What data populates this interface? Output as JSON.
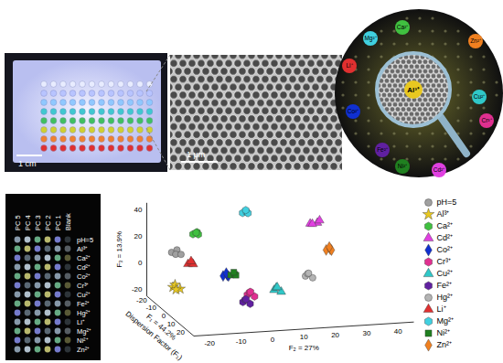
{
  "panels": {
    "plate_photo": {
      "scale_bar": "1 cm"
    },
    "sem_image": {
      "scale_bar": "1 μm"
    },
    "magnifier": {
      "center_label": "Al³⁺",
      "labels": [
        "Mg²⁺",
        "Ca²⁺",
        "Zn²⁺",
        "Li⁺",
        "Co²⁺",
        "Cu²⁺",
        "Cr³⁺",
        "Fe²⁺",
        "Ni²⁺",
        "Cd²⁺"
      ]
    },
    "array_photo": {
      "columns": [
        "PC 5",
        "PC 4",
        "PC 3",
        "PC 2",
        "PC 1",
        "Blank"
      ],
      "rows": [
        "pH=5",
        "Al³⁺",
        "Ca²⁺",
        "Cd²⁺",
        "Co²⁺",
        "Cr³⁺",
        "Cu²⁺",
        "Fe²⁺",
        "Hg²⁺",
        "Li⁺",
        "Mg²⁺",
        "Ni²⁺",
        "Zn²⁺"
      ]
    }
  },
  "chart_data": {
    "type": "scatter",
    "xlabel": "F₂ = 27%",
    "ylabel": "F₁ = 44.2%",
    "zlabel": "F₃ = 13.9%",
    "annotations": [
      "Dispersion Factor (F₁)"
    ],
    "xlim": [
      -25,
      45
    ],
    "xticks": [
      -20,
      -10,
      0,
      10,
      20,
      30,
      40
    ],
    "ylim": [
      -25,
      25
    ],
    "yticks": [
      -20,
      -10,
      0,
      10,
      20
    ],
    "zlim": [
      -25,
      45
    ],
    "zticks": [
      -20,
      0,
      20,
      40
    ],
    "legend": "right",
    "series": [
      {
        "name": "pH=5",
        "color": "#a0a0a0",
        "marker": "circle",
        "x": [
          -21,
          -19,
          -20,
          -18
        ],
        "y": [
          -12,
          -13,
          -11,
          -12
        ],
        "z": [
          15,
          16,
          14,
          13
        ]
      },
      {
        "name": "Al³⁺",
        "color": "#e8c820",
        "marker": "star",
        "x": [
          -23,
          -22,
          -21,
          -22
        ],
        "y": [
          -4,
          -5,
          -3,
          -4
        ],
        "z": [
          -6,
          -5,
          -7,
          -8
        ]
      },
      {
        "name": "Ca²⁺",
        "color": "#40c040",
        "marker": "hexagon",
        "x": [
          -13,
          -12,
          -11,
          -12
        ],
        "y": [
          -16,
          -15,
          -17,
          -16
        ],
        "z": [
          25,
          27,
          24,
          26
        ]
      },
      {
        "name": "Cd²⁺",
        "color": "#e040e0",
        "marker": "triangle",
        "x": [
          24,
          26,
          25,
          27
        ],
        "y": [
          -15,
          -14,
          -16,
          -15
        ],
        "z": [
          28,
          29,
          27,
          30
        ]
      },
      {
        "name": "Co²⁺",
        "color": "#1030d0",
        "marker": "diamond",
        "x": [
          -7,
          -6,
          -5,
          -6
        ],
        "y": [
          -4,
          -3,
          -5,
          -4
        ],
        "z": [
          0,
          1,
          -1,
          2
        ]
      },
      {
        "name": "Cr³⁺",
        "color": "#e03090",
        "marker": "hexagon",
        "x": [
          -5,
          -4,
          -3,
          -4
        ],
        "y": [
          15,
          14,
          16,
          15
        ],
        "z": [
          -3,
          -2,
          -4,
          -1
        ]
      },
      {
        "name": "Cu²⁺",
        "color": "#30c8c8",
        "marker": "triangle",
        "x": [
          5,
          6,
          7,
          6
        ],
        "y": [
          10,
          9,
          11,
          10
        ],
        "z": [
          -4,
          -3,
          -5,
          -2
        ]
      },
      {
        "name": "Fe²⁺",
        "color": "#6020a0",
        "marker": "hexagon",
        "x": [
          -7,
          -6,
          -5,
          -6
        ],
        "y": [
          17,
          16,
          18,
          17
        ],
        "z": [
          -7,
          -6,
          -8,
          -5
        ]
      },
      {
        "name": "Hg²⁺",
        "color": "#b4b4b4",
        "marker": "circle",
        "x": [
          15,
          16,
          17,
          16
        ],
        "y": [
          10,
          9,
          11,
          10
        ],
        "z": [
          5,
          6,
          4,
          7
        ]
      },
      {
        "name": "Li⁺",
        "color": "#e03030",
        "marker": "triangle",
        "x": [
          -17,
          -16,
          -15,
          -16
        ],
        "y": [
          -8,
          -7,
          -9,
          -8
        ],
        "z": [
          8,
          9,
          7,
          10
        ]
      },
      {
        "name": "Mg²⁺",
        "color": "#40d0e0",
        "marker": "hexagon",
        "x": [
          4,
          5,
          6,
          5
        ],
        "y": [
          -20,
          -19,
          -21,
          -20
        ],
        "z": [
          36,
          37,
          35,
          38
        ]
      },
      {
        "name": "Ni²⁺",
        "color": "#208020",
        "marker": "square",
        "x": [
          -4,
          -3,
          -2,
          -3
        ],
        "y": [
          -6,
          -5,
          -7,
          -6
        ],
        "z": [
          -1,
          0,
          -2,
          1
        ]
      },
      {
        "name": "Zn²⁺",
        "color": "#f08020",
        "marker": "diamond",
        "x": [
          27,
          28,
          29,
          28
        ],
        "y": [
          -8,
          -7,
          -9,
          -8
        ],
        "z": [
          12,
          13,
          11,
          14
        ]
      }
    ]
  }
}
